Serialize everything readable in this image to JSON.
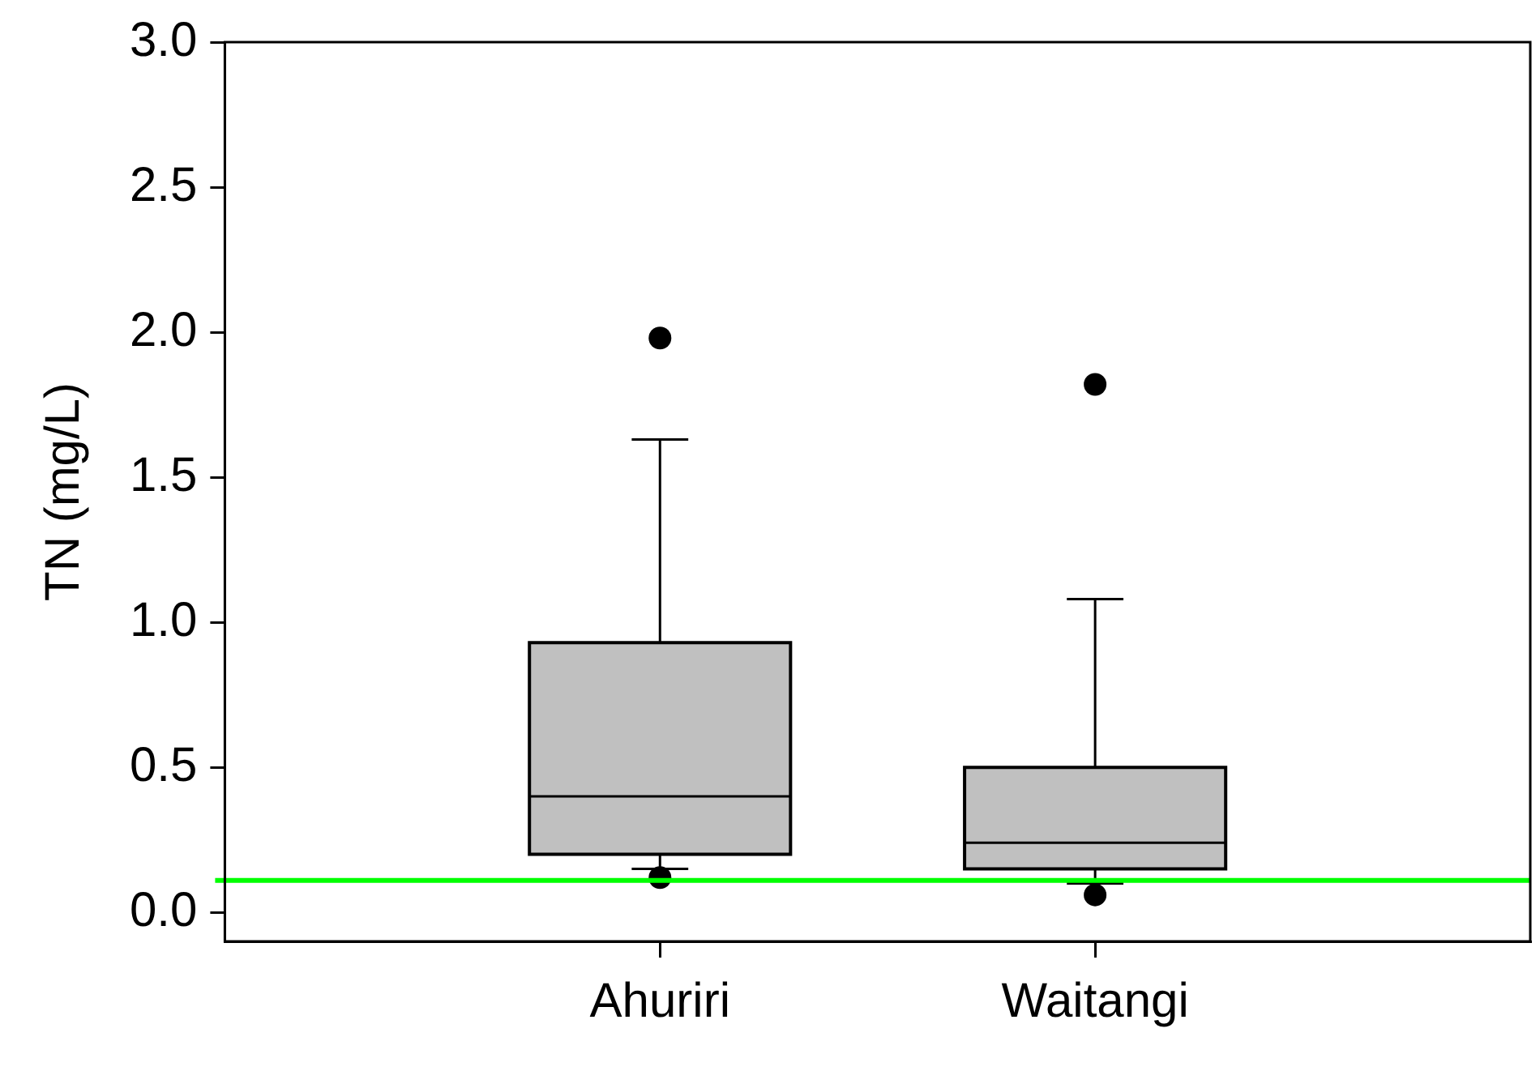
{
  "chart_data": {
    "type": "box",
    "ylabel": "TN (mg/L)",
    "categories": [
      "Ahuriri",
      "Waitangi"
    ],
    "color": "#c0c0c0",
    "boxes": [
      {
        "low": 0.15,
        "q1": 0.2,
        "median": 0.4,
        "q3": 0.93,
        "high": 1.63,
        "outliers": [
          1.98,
          0.12
        ]
      },
      {
        "low": 0.1,
        "q1": 0.15,
        "median": 0.24,
        "q3": 0.5,
        "high": 1.08,
        "outliers": [
          1.82,
          0.06
        ]
      }
    ],
    "ylim": [
      -0.1,
      3.0
    ],
    "yticks": [
      {
        "value": 0,
        "label": "0.0"
      },
      {
        "value": 0.5,
        "label": "0.5"
      },
      {
        "value": 1,
        "label": "1.0"
      },
      {
        "value": 1.5,
        "label": "1.5"
      },
      {
        "value": 2,
        "label": "2.0"
      },
      {
        "value": 2.5,
        "label": "2.5"
      },
      {
        "value": 3,
        "label": "3.0"
      }
    ],
    "ref_lines": [
      {
        "axis": "y",
        "value": 0.11,
        "color": "#00ff00"
      }
    ]
  }
}
